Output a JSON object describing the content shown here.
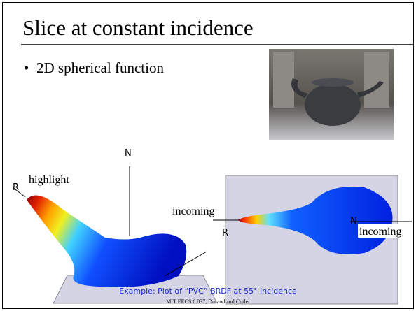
{
  "header": {
    "title": "Slice at constant incidence"
  },
  "bullets": [
    "2D spherical function"
  ],
  "left_figure": {
    "labels": {
      "r": "R",
      "highlight": "highlight",
      "n": "N",
      "incoming": "incoming"
    }
  },
  "right_figure": {
    "labels": {
      "r": "R",
      "n": "N",
      "incoming": "incoming"
    }
  },
  "caption": "Example: Plot of “PVC” BRDF at 55° incidence",
  "footer": "MIT EECS 6.837, Durand and Cutler"
}
